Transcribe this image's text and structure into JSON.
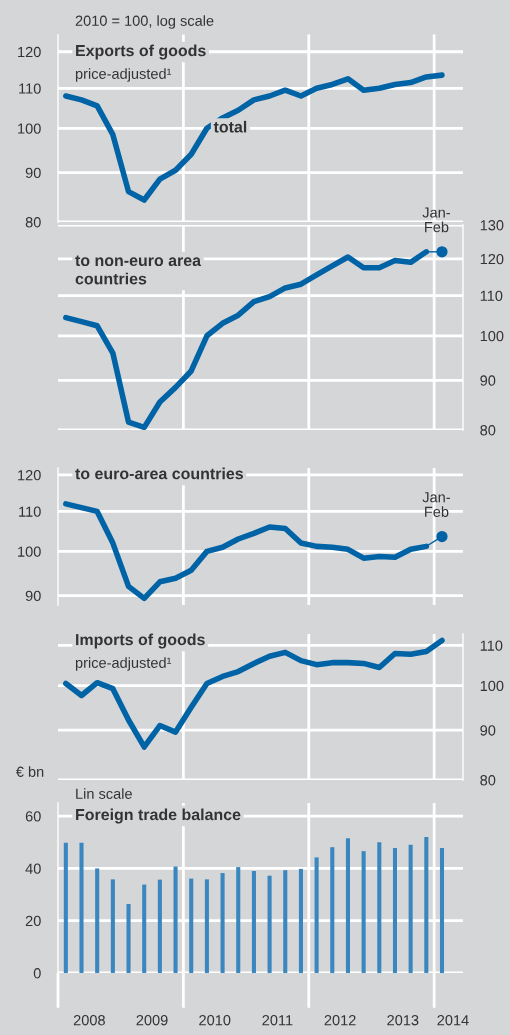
{
  "chart_data": [
    {
      "type": "line",
      "title": "Exports of goods",
      "subtitle": "price-adjusted¹",
      "annotations": [
        "2010 = 100, log scale",
        {
          "text": "total",
          "x": 2010.75,
          "y": 100
        }
      ],
      "log": true,
      "ylim": [
        80,
        125
      ],
      "yticks": [
        80,
        90,
        100,
        110,
        120
      ],
      "xlim": [
        2008,
        2014.46
      ],
      "xticks": [
        {
          "value": 2010,
          "label": null
        },
        {
          "value": 2012,
          "label": null
        },
        {
          "value": 2014,
          "label": null
        }
      ],
      "tick_labels": "y",
      "grid": true,
      "series": [
        {
          "color": "#0063a6",
          "x": [
            2008.125,
            2008.375,
            2008.625,
            2008.875,
            2009.125,
            2009.375,
            2009.625,
            2009.875,
            2010.125,
            2010.375,
            2010.625,
            2010.875,
            2011.125,
            2011.375,
            2011.625,
            2011.875,
            2012.125,
            2012.375,
            2012.625,
            2012.875,
            2013.125,
            2013.375,
            2013.625,
            2013.875,
            2014.125
          ],
          "values": [
            108,
            107,
            105.5,
            98.5,
            86,
            84.3,
            88.6,
            90.5,
            94,
            100,
            102.5,
            104.4,
            107,
            108,
            109.5,
            108,
            110,
            111,
            112.5,
            109.5,
            110,
            111,
            111.5,
            113,
            113.5
          ]
        }
      ]
    },
    {
      "type": "line",
      "title": "to non-euro area\ncountries",
      "annotations": [
        "Jan-\nFeb"
      ],
      "log": "y2",
      "y2lim": [
        80,
        130
      ],
      "y2ticks": [
        80,
        90,
        100,
        110,
        120,
        130
      ],
      "xlim": [
        2008,
        2014.46
      ],
      "xticks": [
        {
          "value": 2010,
          "label": null
        },
        {
          "value": 2012,
          "label": null
        },
        {
          "value": 2014,
          "label": null
        }
      ],
      "tick_labels": "y",
      "grid": true,
      "series": [
        {
          "color": "#0063a6",
          "axis": "y2",
          "x": [
            2008.125,
            2008.375,
            2008.625,
            2008.875,
            2009.125,
            2009.375,
            2009.625,
            2009.875,
            2010.125,
            2010.375,
            2010.625,
            2010.875,
            2011.125,
            2011.375,
            2011.625,
            2011.875,
            2012.125,
            2012.375,
            2012.625,
            2012.875,
            2013.125,
            2013.375,
            2013.625,
            2013.875
          ],
          "values": [
            104.4,
            103.4,
            102.4,
            96,
            81.5,
            80.5,
            85.5,
            88.5,
            92,
            100,
            103,
            105,
            108.4,
            109.7,
            112,
            113,
            115.5,
            118,
            120.5,
            117.5,
            117.5,
            119.5,
            119,
            122
          ]
        },
        {
          "type": "scatter",
          "color": "#0063a6",
          "axis": "y2",
          "x": [
            2014.125
          ],
          "values": [
            122
          ]
        }
      ]
    },
    {
      "type": "line",
      "title": "to euro-area countries",
      "annotations": [
        "Jan-\nFeb"
      ],
      "log": true,
      "ylim": [
        88,
        122
      ],
      "yticks": [
        90,
        100,
        110,
        120
      ],
      "xlim": [
        2008,
        2014.46
      ],
      "xticks": [
        {
          "value": 2010,
          "label": null
        },
        {
          "value": 2012,
          "label": null
        },
        {
          "value": 2014,
          "label": null
        }
      ],
      "tick_labels": "y",
      "grid": true,
      "series": [
        {
          "color": "#0063a6",
          "x": [
            2008.125,
            2008.375,
            2008.625,
            2008.875,
            2009.125,
            2009.375,
            2009.625,
            2009.875,
            2010.125,
            2010.375,
            2010.625,
            2010.875,
            2011.125,
            2011.375,
            2011.625,
            2011.875,
            2012.125,
            2012.375,
            2012.625,
            2012.875,
            2013.125,
            2013.375,
            2013.625,
            2013.875
          ],
          "values": [
            112,
            111,
            110,
            102,
            92,
            89.4,
            93,
            93.8,
            95.6,
            100,
            101,
            103,
            104.4,
            106,
            105.6,
            102,
            101.2,
            101,
            100.5,
            98.4,
            98.8,
            98.6,
            100.5,
            101.2
          ]
        },
        {
          "type": "scatter",
          "color": "#0063a6",
          "x": [
            2014.125
          ],
          "values": [
            103.6
          ]
        }
      ]
    },
    {
      "type": "line",
      "title": "Imports of goods",
      "subtitle": "price-adjusted¹",
      "log": "y2",
      "y2lim": [
        80,
        113
      ],
      "y2ticks": [
        80,
        90,
        100,
        110
      ],
      "xlim": [
        2008,
        2014.46
      ],
      "xticks": [
        {
          "value": 2010,
          "label": null
        },
        {
          "value": 2012,
          "label": null
        },
        {
          "value": 2014,
          "label": null
        }
      ],
      "tick_labels": "y",
      "grid": true,
      "series": [
        {
          "color": "#0063a6",
          "axis": "y2",
          "x": [
            2008.125,
            2008.375,
            2008.625,
            2008.875,
            2009.125,
            2009.375,
            2009.625,
            2009.875,
            2010.125,
            2010.375,
            2010.625,
            2010.875,
            2011.125,
            2011.375,
            2011.625,
            2011.875,
            2012.125,
            2012.375,
            2012.625,
            2012.875,
            2013.125,
            2013.375,
            2013.625,
            2013.875,
            2014.125
          ],
          "values": [
            100.5,
            97.7,
            100.7,
            99.3,
            92.2,
            86.5,
            91,
            89.6,
            95,
            100.5,
            102.2,
            103.4,
            105.4,
            107.2,
            108.2,
            106.1,
            105.1,
            105.6,
            105.6,
            105.4,
            104.4,
            107.9,
            107.7,
            108.4,
            111.3
          ]
        }
      ]
    },
    {
      "type": "bar",
      "title": "Foreign trade balance",
      "subtitle": "Lin scale",
      "ylabel": "€ bn",
      "ylim": [
        0,
        65
      ],
      "yticks": [
        0,
        20,
        40,
        60
      ],
      "xlim": [
        2008,
        2014.46
      ],
      "xticks": [
        {
          "value": 2008,
          "label": null
        },
        {
          "value": 2008.5,
          "label": "2008"
        },
        {
          "value": 2009.5,
          "label": "2009"
        },
        {
          "value": 2010,
          "label": null
        },
        {
          "value": 2010.5,
          "label": "2010"
        },
        {
          "value": 2011.5,
          "label": "2011"
        },
        {
          "value": 2012,
          "label": null
        },
        {
          "value": 2012.5,
          "label": "2012"
        },
        {
          "value": 2013.5,
          "label": "2013"
        },
        {
          "value": 2014,
          "label": null
        },
        {
          "value": 2014.3,
          "label": "2014"
        }
      ],
      "grid": "y",
      "ref_lines": [
        {
          "axis": "x",
          "value": 2010,
          "color": "#ffffff"
        },
        {
          "axis": "x",
          "value": 2012,
          "color": "#ffffff"
        },
        {
          "axis": "x",
          "value": 2014,
          "color": "#ffffff"
        }
      ],
      "x": [
        2008.125,
        2008.375,
        2008.625,
        2008.875,
        2009.125,
        2009.375,
        2009.625,
        2009.875,
        2010.125,
        2010.375,
        2010.625,
        2010.875,
        2011.125,
        2011.375,
        2011.625,
        2011.875,
        2012.125,
        2012.375,
        2012.625,
        2012.875,
        2013.125,
        2013.375,
        2013.625,
        2013.875,
        2014.125
      ],
      "series": [
        {
          "color": "#3a86be",
          "values": [
            49.8,
            49.8,
            40,
            35.8,
            26.4,
            33.8,
            35.7,
            40.7,
            36.1,
            35.8,
            38.2,
            40.5,
            39,
            37.2,
            39.3,
            39.8,
            44.2,
            48.1,
            51.5,
            46.6,
            50,
            47.8,
            49,
            52,
            47.8
          ]
        }
      ]
    }
  ]
}
